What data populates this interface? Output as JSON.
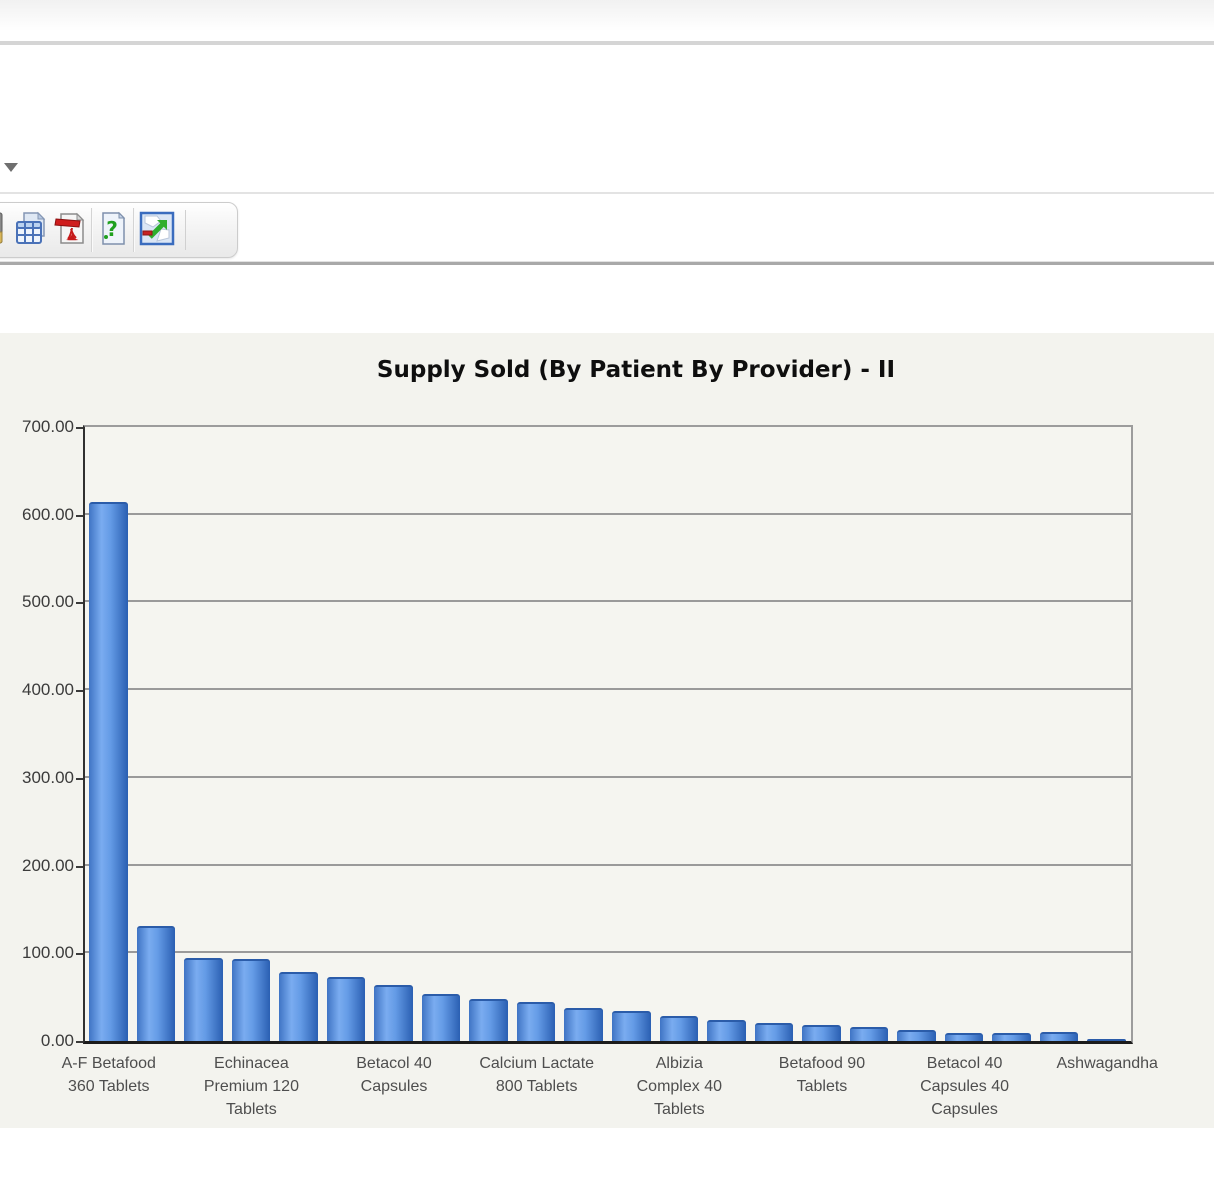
{
  "toolbar": {
    "dropdown_icon": "chevron-down-icon",
    "buttons": [
      {
        "icon": "document-edge-icon"
      },
      {
        "icon": "export-table-icon"
      },
      {
        "icon": "export-pdf-icon"
      },
      {
        "icon": "help-icon"
      },
      {
        "icon": "toggle-size-icon"
      }
    ]
  },
  "chart_data": {
    "type": "bar",
    "title": "Supply Sold (By Patient By Provider) - II",
    "categories": [
      "A-F Betafood\n360 Tablets",
      "",
      "",
      "Echinacea\nPremium  120\nTablets",
      "",
      "",
      "Betacol  40\nCapsules",
      "",
      "",
      "Calcium Lactate\n800 Tablets",
      "",
      "",
      "Albizia\nComplex  40\nTablets",
      "",
      "",
      "Betafood  90\nTablets",
      "",
      "",
      "Betacol  40\nCapsules  40\nCapsules",
      "",
      "",
      "Ashwagandha"
    ],
    "values": [
      615,
      131,
      95,
      93,
      79,
      73,
      64,
      54,
      48,
      45,
      38,
      34,
      29,
      24,
      20,
      18,
      16,
      12,
      9,
      9,
      10,
      2
    ],
    "label_every": 3,
    "ylim": [
      0,
      700
    ],
    "yticks": [
      0,
      100,
      200,
      300,
      400,
      500,
      600,
      700
    ],
    "ytick_labels": [
      "0.00",
      "100.00",
      "200.00",
      "300.00",
      "400.00",
      "500.00",
      "600.00",
      "700.00"
    ],
    "xlabel": "",
    "ylabel": "",
    "grid": true,
    "legend": false,
    "bar_color": "#4a86d8",
    "bar_gradient": [
      "#3f74c4",
      "#7aacf0",
      "#2a5fb2"
    ],
    "plot_background": "#f5f5f0",
    "panel_background": "#f3f3ee"
  }
}
